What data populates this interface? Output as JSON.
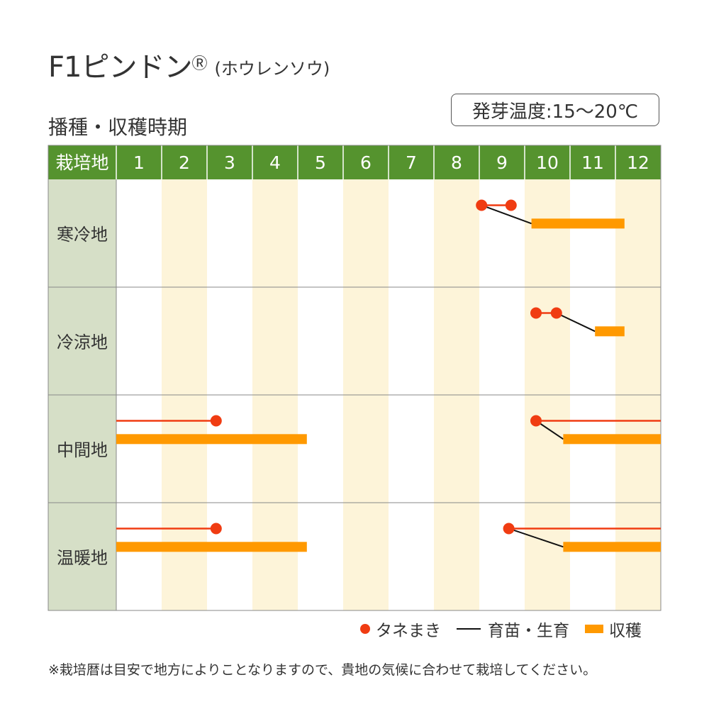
{
  "title": {
    "main": "F1ピンドン",
    "mark": "Ⓡ",
    "sub": "(ホウレンソウ)"
  },
  "section_title": "播種・収穫時期",
  "germination_temp": "発芽温度:15〜20℃",
  "colors": {
    "header_green": "#55932e",
    "row_label_bg": "#d6dfc7",
    "alt_column": "#fdf4d9",
    "sowing": "#f03c12",
    "harvest": "#ff9900",
    "growing": "#111111"
  },
  "chart_data": {
    "type": "gantt",
    "header_label": "栽培地",
    "months": [
      "1",
      "2",
      "3",
      "4",
      "5",
      "6",
      "7",
      "8",
      "9",
      "10",
      "11",
      "12"
    ],
    "regions": [
      {
        "name": "寒冷地",
        "sowing": [
          {
            "start": 8.05,
            "end": 8.7
          }
        ],
        "growing": [
          {
            "from": 8.05,
            "to": 9.15
          }
        ],
        "harvest": [
          {
            "start": 9.15,
            "end": 11.2
          }
        ]
      },
      {
        "name": "冷涼地",
        "sowing": [
          {
            "start": 9.25,
            "end": 9.7
          }
        ],
        "growing": [
          {
            "from": 9.7,
            "to": 10.55
          }
        ],
        "harvest": [
          {
            "start": 10.55,
            "end": 11.2
          }
        ]
      },
      {
        "name": "中間地",
        "sowing": [
          {
            "start": 0.0,
            "end": 2.2
          },
          {
            "start": 9.25,
            "end": 12.0
          }
        ],
        "growing": [
          {
            "from": 9.25,
            "to": 9.85
          }
        ],
        "harvest": [
          {
            "start": 0.0,
            "end": 4.2
          },
          {
            "start": 9.85,
            "end": 12.0
          }
        ]
      },
      {
        "name": "温暖地",
        "sowing": [
          {
            "start": 0.0,
            "end": 2.2
          },
          {
            "start": 8.65,
            "end": 12.0
          }
        ],
        "growing": [
          {
            "from": 8.65,
            "to": 9.85
          }
        ],
        "harvest": [
          {
            "start": 0.0,
            "end": 4.2
          },
          {
            "start": 9.85,
            "end": 12.0
          }
        ]
      }
    ]
  },
  "legend": {
    "sowing": "タネまき",
    "growing": "育苗・生育",
    "harvest": "収穫"
  },
  "footnote": "※栽培暦は目安で地方によりことなりますので、貴地の気候に合わせて栽培してください。"
}
